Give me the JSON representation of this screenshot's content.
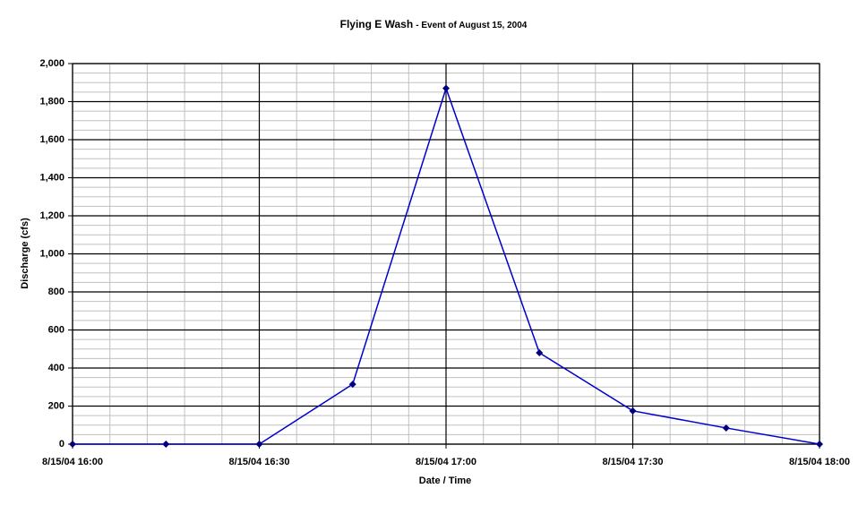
{
  "chart_data": {
    "type": "line",
    "title": "Flying E Wash",
    "subtitle": "- Event of August 15, 2004",
    "x_label": "Date / Time",
    "y_label": "Discharge (cfs)",
    "x": [
      "8/15/04 16:00",
      "8/15/04 16:15",
      "8/15/04 16:30",
      "8/15/04 16:45",
      "8/15/04 17:00",
      "8/15/04 17:15",
      "8/15/04 17:30",
      "8/15/04 17:45",
      "8/15/04 18:00"
    ],
    "values": [
      0,
      0,
      0,
      315,
      1870,
      480,
      175,
      85,
      0
    ],
    "color": "#0000cc",
    "marker_color": "#000080",
    "xlim": [
      "8/15/04 16:00",
      "8/15/04 18:00"
    ],
    "xticks": [
      "8/15/04 16:00",
      "8/15/04 16:30",
      "8/15/04 17:00",
      "8/15/04 17:30",
      "8/15/04 18:00"
    ],
    "ylim": [
      0,
      2000
    ],
    "yticks": [
      0,
      200,
      400,
      600,
      800,
      {
        "value": 1000,
        "label": "1,000"
      },
      {
        "value": 1200,
        "label": "1,200"
      },
      {
        "value": 1400,
        "label": "1,400"
      },
      {
        "value": 1600,
        "label": "1,600"
      },
      {
        "value": 1800,
        "label": "1,800"
      },
      {
        "value": 2000,
        "label": "2,000"
      }
    ],
    "grid": true,
    "minor_divisions": {
      "x": 5,
      "y": 4
    }
  }
}
